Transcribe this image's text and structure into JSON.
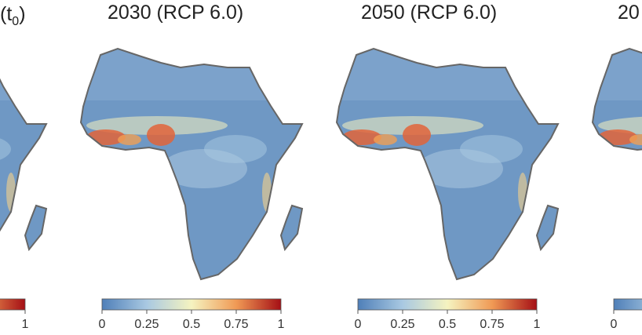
{
  "panels": [
    {
      "title_prefix": "(t",
      "title_sub": "0",
      "title_suffix": ")",
      "partial": true
    },
    {
      "title": "2030 (RCP 6.0)"
    },
    {
      "title": "2050 (RCP 6.0)"
    },
    {
      "title": "20",
      "partial": true
    }
  ],
  "colorbar": {
    "ticks": [
      "0",
      "0.25",
      "0.5",
      "0.75",
      "1"
    ],
    "range": [
      0,
      1
    ],
    "colors": [
      "#4f7fb8",
      "#a9c9e2",
      "#f5f3c0",
      "#f09a55",
      "#a50f15"
    ]
  },
  "colors": {
    "land": "#6f98c4",
    "coast": "#666666"
  }
}
